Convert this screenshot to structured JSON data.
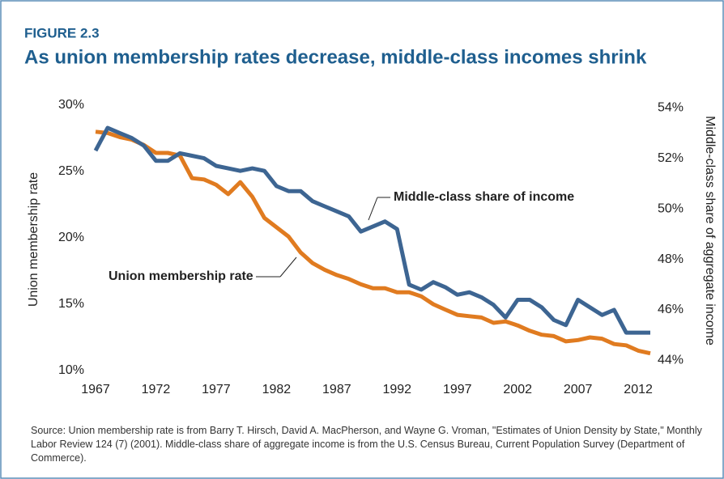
{
  "chart_data": {
    "type": "line",
    "figure_label": "FIGURE 2.3",
    "title": "As union membership rates decrease, middle-class incomes shrink",
    "y_label": "Union membership rate",
    "y2_label": "Middle-class share of aggregate income",
    "source": "Source: Union membership rate is from Barry T. Hirsch, David A. MacPherson, and Wayne G. Vroman, \"Estimates of Union Density by State,\" Monthly Labor Review 124 (7) (2001). Middle-class share of aggregate income is from the U.S. Census Bureau, Current Population Survey (Department of Commerce).",
    "x": [
      1967,
      1968,
      1969,
      1970,
      1971,
      1972,
      1973,
      1974,
      1975,
      1976,
      1977,
      1978,
      1979,
      1980,
      1981,
      1982,
      1983,
      1984,
      1985,
      1986,
      1987,
      1988,
      1989,
      1990,
      1991,
      1992,
      1993,
      1994,
      1995,
      1996,
      1997,
      1998,
      1999,
      2000,
      2001,
      2002,
      2003,
      2004,
      2005,
      2006,
      2007,
      2008,
      2009,
      2010,
      2011,
      2012,
      2013
    ],
    "xlim": [
      1967,
      2013
    ],
    "xticks": [
      1967,
      1972,
      1977,
      1982,
      1987,
      1992,
      1997,
      2002,
      2007,
      2012
    ],
    "ylim": [
      10,
      30
    ],
    "yticks": [
      {
        "value": 10,
        "label": "10%"
      },
      {
        "value": 15,
        "label": "15%"
      },
      {
        "value": 20,
        "label": "20%"
      },
      {
        "value": 25,
        "label": "25%"
      },
      {
        "value": 30,
        "label": "30%"
      }
    ],
    "y2lim": [
      43.6,
      54.1
    ],
    "y2ticks": [
      {
        "value": 44,
        "label": "44%"
      },
      {
        "value": 46,
        "label": "46%"
      },
      {
        "value": 48,
        "label": "48%"
      },
      {
        "value": 50,
        "label": "50%"
      },
      {
        "value": 52,
        "label": "52%"
      },
      {
        "value": 54,
        "label": "54%"
      }
    ],
    "series": [
      {
        "name": "Union membership rate",
        "color": "#e07b20",
        "axis": "y",
        "values": [
          28.0,
          27.9,
          27.6,
          27.4,
          27.0,
          26.4,
          26.4,
          26.2,
          24.5,
          24.4,
          24.0,
          23.3,
          24.2,
          23.1,
          21.5,
          20.8,
          20.1,
          18.9,
          18.1,
          17.6,
          17.2,
          16.9,
          16.5,
          16.2,
          16.2,
          15.9,
          15.9,
          15.6,
          15.0,
          14.6,
          14.2,
          14.1,
          14.0,
          13.6,
          13.7,
          13.4,
          13.0,
          12.7,
          12.6,
          12.2,
          12.3,
          12.5,
          12.4,
          12.0,
          11.9,
          11.5,
          11.3
        ]
      },
      {
        "name": "Middle-class share of income",
        "color": "#3d6592",
        "axis": "y2",
        "values": [
          52.3,
          53.2,
          53.0,
          52.8,
          52.5,
          51.9,
          51.9,
          52.2,
          52.1,
          52.0,
          51.7,
          51.6,
          51.5,
          51.6,
          51.5,
          50.9,
          50.7,
          50.7,
          50.3,
          50.1,
          49.9,
          49.7,
          49.1,
          49.3,
          49.5,
          49.2,
          47.0,
          46.8,
          47.1,
          46.9,
          46.6,
          46.7,
          46.5,
          46.2,
          45.7,
          46.4,
          46.4,
          46.1,
          45.6,
          45.4,
          46.4,
          46.1,
          45.8,
          46.0,
          45.1,
          45.1,
          45.1
        ]
      }
    ]
  }
}
